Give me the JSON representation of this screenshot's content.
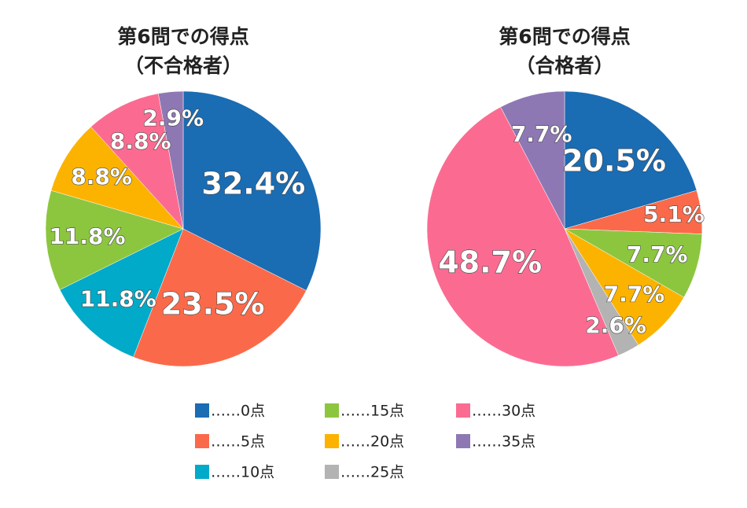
{
  "chart_data": [
    {
      "type": "pie",
      "title": "第6問での得点",
      "subtitle": "（不合格者）",
      "categories": [
        "……0点",
        "……5点",
        "……10点",
        "……15点",
        "……20点",
        "……25点",
        "……30点",
        "……35点"
      ],
      "values": [
        32.4,
        23.5,
        11.8,
        11.8,
        8.8,
        0,
        8.8,
        2.9
      ],
      "value_labels": [
        "32.4%",
        "23.5%",
        "11.8%",
        "11.8%",
        "8.8%",
        null,
        "8.8%",
        "2.9%"
      ],
      "colors": [
        "#1a6cb3",
        "#fa6a4a",
        "#00aac8",
        "#8cc63f",
        "#fbb300",
        "#b3b3b3",
        "#fb6b91",
        "#8e78b4"
      ]
    },
    {
      "type": "pie",
      "title": "第6問での得点",
      "subtitle": "（合格者）",
      "categories": [
        "……0点",
        "……5点",
        "……10点",
        "……15点",
        "……20点",
        "……25点",
        "……30点",
        "……35点"
      ],
      "values": [
        20.5,
        5.1,
        0,
        7.7,
        7.7,
        2.6,
        48.7,
        7.7
      ],
      "value_labels": [
        "20.5%",
        "5.1%",
        null,
        "7.7%",
        "7.7%",
        "2.6%",
        "48.7%",
        "7.7%"
      ],
      "colors": [
        "#1a6cb3",
        "#fa6a4a",
        "#00aac8",
        "#8cc63f",
        "#fbb300",
        "#b3b3b3",
        "#fb6b91",
        "#8e78b4"
      ]
    }
  ]
}
